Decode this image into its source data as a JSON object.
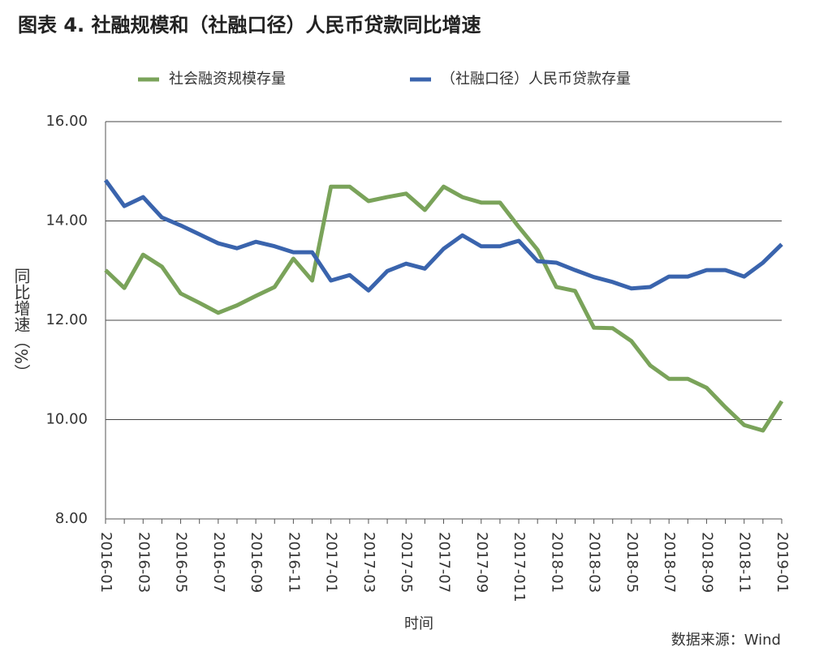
{
  "chart_data": {
    "type": "line",
    "title": "图表 4. 社融规模和（社融口径）人民币贷款同比增速",
    "x_label": "时间",
    "y_label": "同比增速（%）",
    "source": "数据来源：Wind",
    "categories": [
      "2016-01",
      null,
      "2016-03",
      null,
      "2016-05",
      null,
      "2016-07",
      null,
      "2016-09",
      null,
      "2016-11",
      null,
      "2017-01",
      null,
      "2017-03",
      null,
      "2017-05",
      null,
      "2017-07",
      null,
      "2017-09",
      null,
      "2017-011",
      null,
      "2018-01",
      null,
      "2018-03",
      null,
      "2018-05",
      null,
      "2018-07",
      null,
      "2018-09",
      null,
      "2018-11",
      null,
      "2019-01"
    ],
    "series": [
      {
        "name": "社会融资规模存量",
        "color": "#7aa35a",
        "values": [
          13.01,
          12.65,
          13.32,
          13.08,
          12.54,
          12.35,
          12.15,
          12.3,
          12.49,
          12.67,
          13.24,
          12.8,
          14.69,
          14.69,
          14.4,
          14.48,
          14.55,
          14.22,
          14.69,
          14.48,
          14.37,
          14.37,
          13.88,
          13.42,
          12.67,
          12.59,
          11.85,
          11.84,
          11.58,
          11.09,
          10.82,
          10.82,
          10.64,
          10.25,
          9.89,
          9.78,
          10.37
        ]
      },
      {
        "name": "（社融口径）人民币贷款存量",
        "color": "#3a64ad",
        "values": [
          14.82,
          14.3,
          14.48,
          14.07,
          13.91,
          13.73,
          13.55,
          13.45,
          13.58,
          13.49,
          13.37,
          13.37,
          12.8,
          12.91,
          12.6,
          12.99,
          13.14,
          13.04,
          13.44,
          13.71,
          13.49,
          13.49,
          13.6,
          13.19,
          13.16,
          13.01,
          12.87,
          12.77,
          12.64,
          12.67,
          12.88,
          12.88,
          13.01,
          13.01,
          12.88,
          13.16,
          13.53
        ]
      }
    ],
    "ylim": [
      8,
      16
    ],
    "yticks": [
      {
        "value": 8,
        "label": "8.00"
      },
      {
        "value": 10,
        "label": "10.00"
      },
      {
        "value": 12,
        "label": "12.00"
      },
      {
        "value": 14,
        "label": "14.00"
      },
      {
        "value": 16,
        "label": "16.00"
      }
    ],
    "grid": true,
    "legend": "top"
  }
}
